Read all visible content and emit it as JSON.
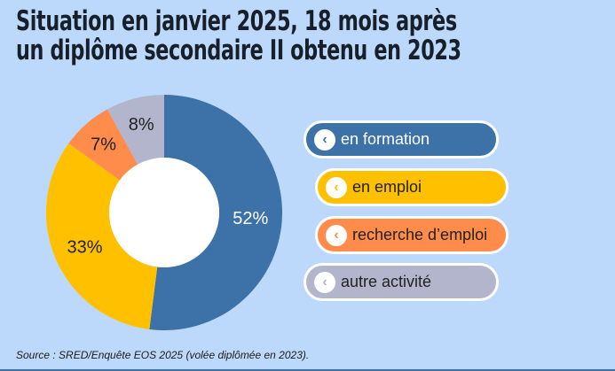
{
  "title": [
    "Situation en janvier 2025, 18 mois après",
    "un diplôme secondaire II obtenu en 2023"
  ],
  "chart_data": {
    "type": "pie",
    "subtype": "donut",
    "title": "Situation en janvier 2025, 18 mois après un diplôme secondaire II obtenu en 2023",
    "categories": [
      "en formation",
      "en emploi",
      "recherche d’emploi",
      "autre activité"
    ],
    "values": [
      52,
      33,
      7,
      8
    ],
    "data_labels": [
      "52%",
      "33%",
      "7%",
      "8%"
    ],
    "colors": [
      "#3d72a8",
      "#ffc000",
      "#ff8c4a",
      "#b3b5cc"
    ],
    "label_colors": [
      "#ffffff",
      "#222222",
      "#222222",
      "#222222"
    ],
    "legend_placement": "right",
    "start": "top, clockwise"
  },
  "legend": [
    {
      "label": "en formation",
      "color": "#3d72a8",
      "text_color": "#ffffff",
      "icon": "chevron-left-icon"
    },
    {
      "label": "en emploi",
      "color": "#ffc000",
      "text_color": "#222222",
      "icon": "chevron-left-icon"
    },
    {
      "label": "recherche d’emploi",
      "color": "#ff8c4a",
      "text_color": "#222222",
      "icon": "chevron-left-icon"
    },
    {
      "label": "autre activité",
      "color": "#b3b5cc",
      "text_color": "#222222",
      "icon": "chevron-left-icon"
    }
  ],
  "source": "Source : SRED/Enquête EOS 2025 (volée diplômée en 2023)."
}
